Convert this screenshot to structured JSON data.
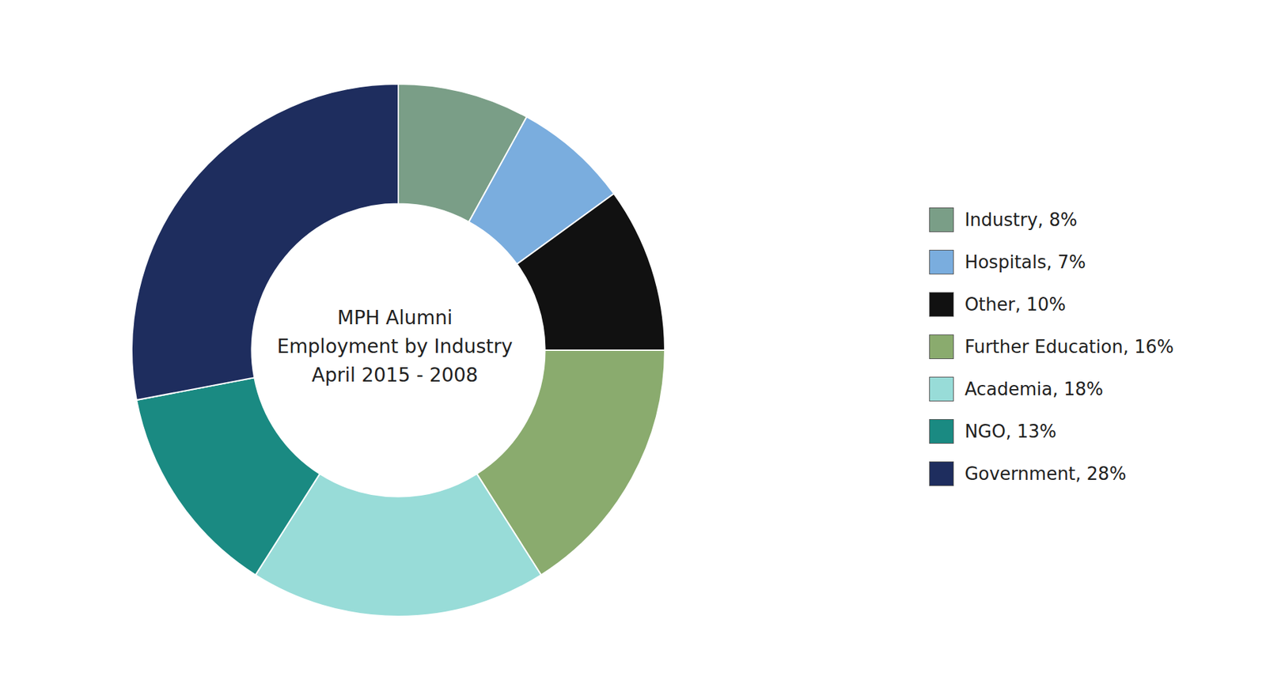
{
  "chart_data": {
    "type": "pie",
    "title": "MPH Alumni\nEmployment by Industry\nApril 2015 - 2008",
    "categories": [
      "Industry, 8%",
      "Hospitals, 7%",
      "Other, 10%",
      "Further Education, 16%",
      "Academia, 18%",
      "NGO, 13%",
      "Government, 28%"
    ],
    "values": [
      8,
      7,
      10,
      16,
      18,
      13,
      28
    ],
    "colors": [
      "#7a9e87",
      "#7aadde",
      "#111111",
      "#8aab6e",
      "#98dcd8",
      "#1a8a82",
      "#1e2d5e"
    ],
    "legend": "right"
  }
}
